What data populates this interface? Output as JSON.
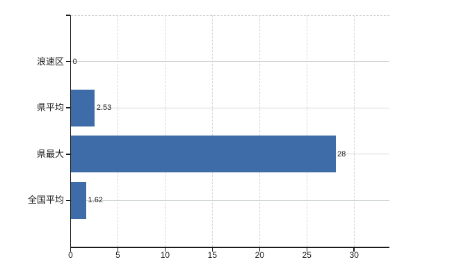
{
  "chart_data": {
    "type": "bar",
    "orientation": "horizontal",
    "title": "",
    "categories": [
      "浪速区",
      "県平均",
      "県最大",
      "全国平均"
    ],
    "values": [
      0,
      2.53,
      28,
      1.62
    ],
    "value_labels": [
      "0",
      "2.53",
      "28",
      "1.62"
    ],
    "x_tick_values": [
      0,
      5,
      10,
      15,
      20,
      25,
      30
    ],
    "x_tick_labels": [
      "0",
      "5",
      "10",
      "15",
      "20",
      "25",
      "30"
    ],
    "xlim": [
      0,
      33.7
    ],
    "xlabel": "",
    "ylabel": "",
    "grid": true,
    "legend_position": "none",
    "colors": {
      "bar": "#3d6ca9",
      "axis": "#1a1a1a",
      "text": "#1a1a1a",
      "horizontal_gridline": "#d2d9d2",
      "vertical_gridline": "#d7d3d9",
      "plot_top_border": "#c9c5cc",
      "background": "#ffffff"
    }
  }
}
